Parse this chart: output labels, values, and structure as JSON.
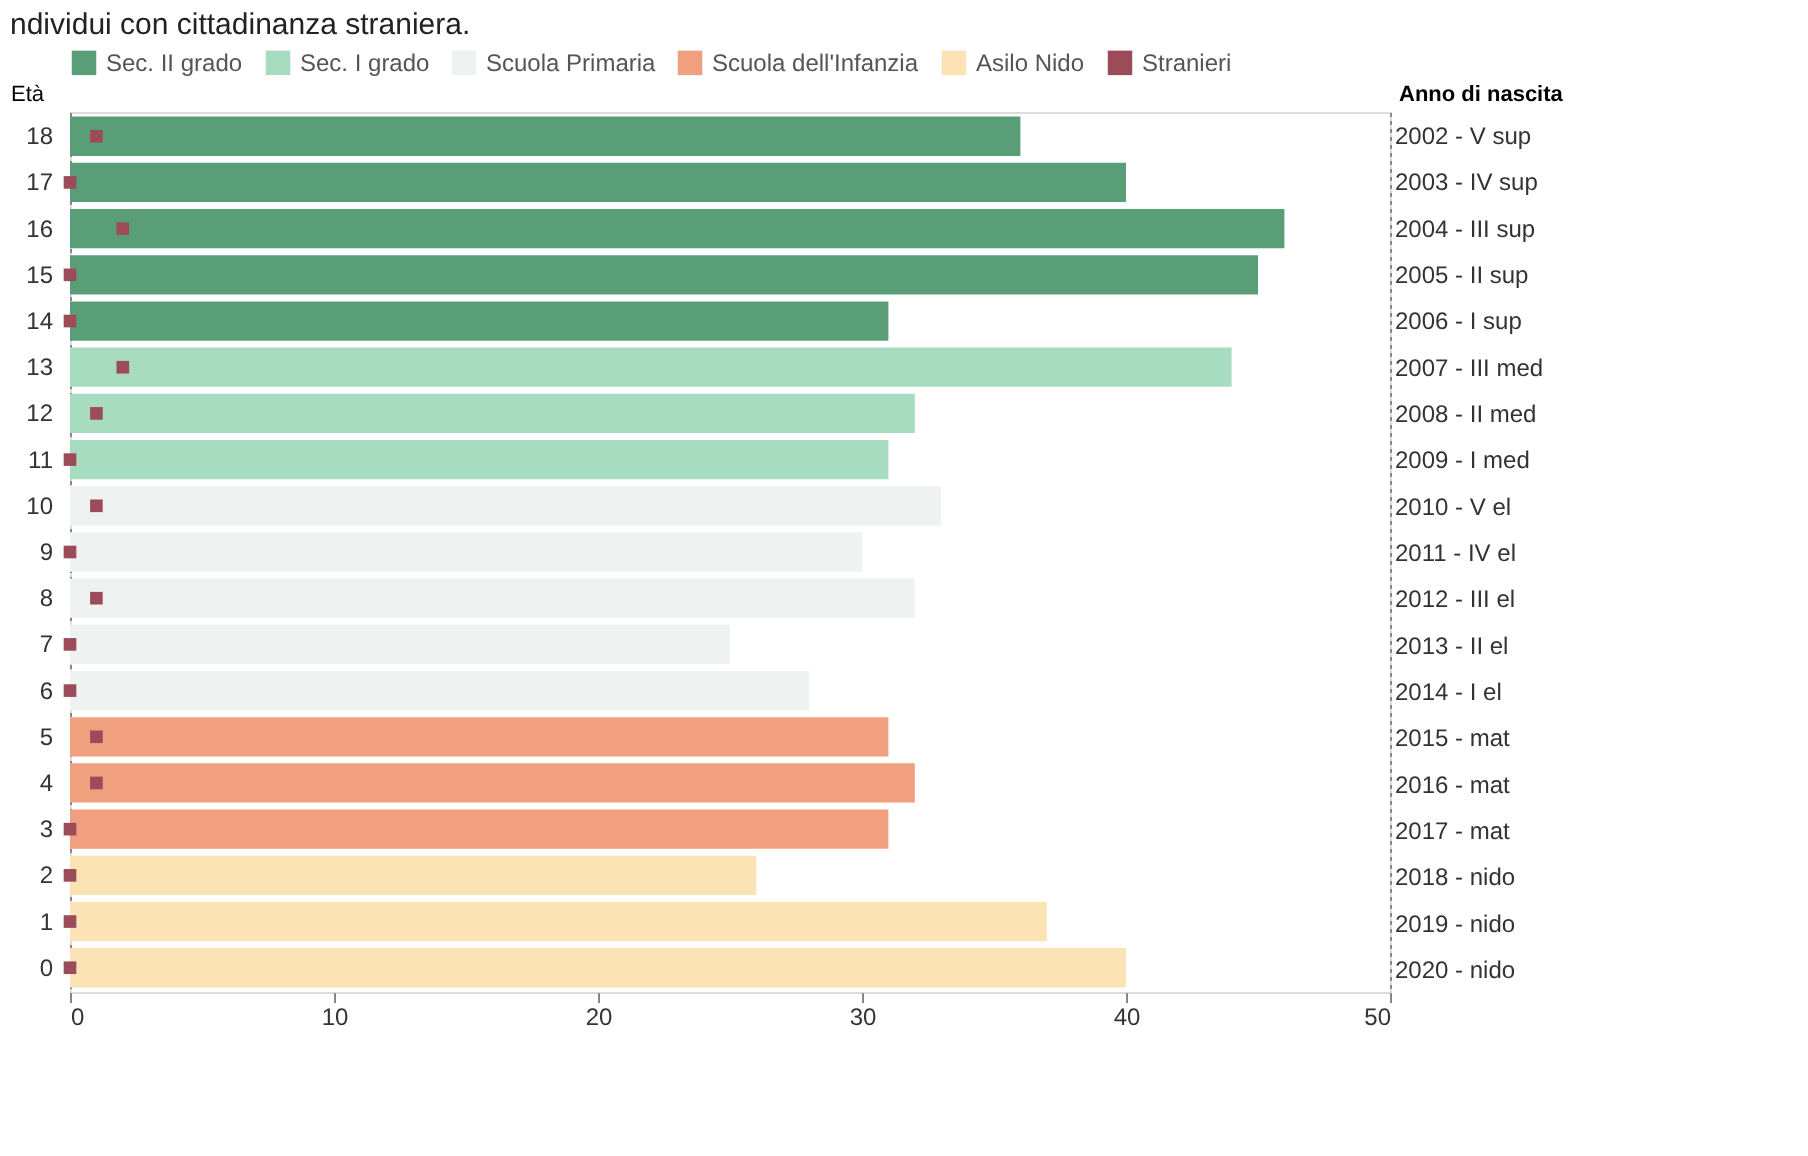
{
  "chart_data": {
    "type": "bar",
    "orientation": "horizontal",
    "title": "ndividui con cittadinanza straniera.",
    "ylabel": "Età",
    "y2label": "Anno di nascita",
    "categories": [
      "18",
      "17",
      "16",
      "15",
      "14",
      "13",
      "12",
      "11",
      "10",
      "9",
      "8",
      "7",
      "6",
      "5",
      "4",
      "3",
      "2",
      "1",
      "0"
    ],
    "y2_categories": [
      "2002 - V sup",
      "2003 - IV sup",
      "2004 - III sup",
      "2005 - II sup",
      "2006 - I sup",
      "2007 - III med",
      "2008 - II med",
      "2009 - I med",
      "2010 - V el",
      "2011 - IV el",
      "2012 - III el",
      "2013 - II el",
      "2014 - I el",
      "2015 - mat",
      "2016 - mat",
      "2017 - mat",
      "2018 - nido",
      "2019 - nido",
      "2020 - nido"
    ],
    "series": [
      {
        "name": "Sec. II grado",
        "color": "#5a9e78",
        "values": [
          36,
          40,
          46,
          45,
          31,
          null,
          null,
          null,
          null,
          null,
          null,
          null,
          null,
          null,
          null,
          null,
          null,
          null,
          null
        ]
      },
      {
        "name": "Sec. I grado",
        "color": "#a8dcc0",
        "values": [
          null,
          null,
          null,
          null,
          null,
          44,
          32,
          31,
          null,
          null,
          null,
          null,
          null,
          null,
          null,
          null,
          null,
          null,
          null
        ]
      },
      {
        "name": "Scuola Primaria",
        "color": "#eef3f1",
        "values": [
          null,
          null,
          null,
          null,
          null,
          null,
          null,
          null,
          33,
          30,
          32,
          25,
          28,
          null,
          null,
          null,
          null,
          null,
          null
        ]
      },
      {
        "name": "Scuola dell'Infanzia",
        "color": "#f0a07e",
        "values": [
          null,
          null,
          null,
          null,
          null,
          null,
          null,
          null,
          null,
          null,
          null,
          null,
          null,
          31,
          32,
          31,
          null,
          null,
          null
        ]
      },
      {
        "name": "Asilo Nido",
        "color": "#fbe3b5",
        "values": [
          null,
          null,
          null,
          null,
          null,
          null,
          null,
          null,
          null,
          null,
          null,
          null,
          null,
          null,
          null,
          null,
          26,
          37,
          40
        ]
      },
      {
        "name": "Stranieri",
        "color": "#9c4c58",
        "type": "scatter",
        "marker": "square",
        "values": [
          1,
          0,
          2,
          0,
          0,
          2,
          1,
          0,
          1,
          0,
          1,
          0,
          0,
          1,
          1,
          0,
          0,
          0,
          0
        ]
      }
    ],
    "xlim": [
      0,
      50
    ],
    "xticks": [
      0,
      10,
      20,
      30,
      40,
      50
    ],
    "grid": false,
    "legend": "top"
  }
}
